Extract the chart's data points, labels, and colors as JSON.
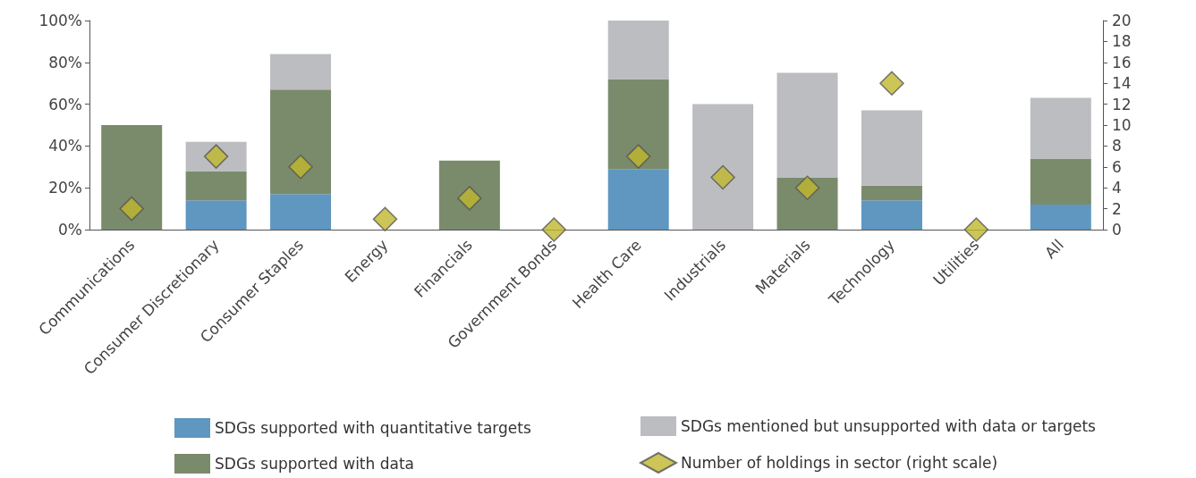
{
  "chart_data": {
    "type": "bar",
    "stacked": true,
    "categories": [
      "Communications",
      "Consumer Discretionary",
      "Consumer Staples",
      "Energy",
      "Financials",
      "Government Bonds",
      "Health Care",
      "Industrials",
      "Materials",
      "Technology",
      "Utilities",
      "All"
    ],
    "series": [
      {
        "name": "SDGs supported with quantitative targets",
        "color": "#5f97c0",
        "values": [
          0,
          14,
          17,
          0,
          0,
          0,
          29,
          0,
          0,
          14,
          0,
          12
        ]
      },
      {
        "name": "SDGs supported with data",
        "color": "#7a8b6c",
        "values": [
          50,
          14,
          50,
          0,
          33,
          0,
          43,
          0,
          25,
          7,
          0,
          22
        ]
      },
      {
        "name": "SDGs mentioned but unsupported with data or targets",
        "color": "#bcbdc0",
        "values": [
          0,
          14,
          17,
          0,
          0,
          0,
          28,
          60,
          50,
          36,
          0,
          29
        ]
      },
      {
        "name": "Number of holdings in sector (right scale)",
        "type": "scatter",
        "axis": "y2",
        "color": "#bfb62d",
        "values": [
          2,
          7,
          6,
          1,
          3,
          0,
          7,
          5,
          4,
          14,
          0,
          null
        ]
      }
    ],
    "ylim": [
      0,
      100
    ],
    "yticks": [
      {
        "value": 0,
        "label": "0%"
      },
      {
        "value": 20,
        "label": "20%"
      },
      {
        "value": 40,
        "label": "40%"
      },
      {
        "value": 60,
        "label": "60%"
      },
      {
        "value": 80,
        "label": "80%"
      },
      {
        "value": 100,
        "label": "100%"
      }
    ],
    "y2lim": [
      0,
      20
    ],
    "y2ticks": [
      0,
      2,
      4,
      6,
      8,
      10,
      12,
      14,
      16,
      18,
      20
    ],
    "marker": "diamond",
    "grid": false,
    "legend": "bottom"
  }
}
